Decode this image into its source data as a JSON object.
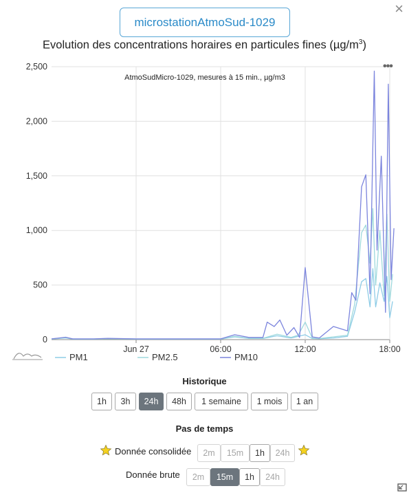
{
  "close_icon": "×",
  "station_button": "microstationAtmoSud-1029",
  "chart": {
    "title_main": "Evolution des concentrations horaires en particules fines (µg/m",
    "title_sup": "3",
    "title_end": ")",
    "subtitle": "AtmoSudMicro-1029, mesures à 15 min.,  µg/m3",
    "menu_icon": "•••"
  },
  "chart_data": {
    "type": "line",
    "title": "Evolution des concentrations horaires en particules fines (µg/m³)",
    "subtitle": "AtmoSudMicro-1029, mesures à 15 min.,  µg/m3",
    "ylim": [
      0,
      2500
    ],
    "y_ticks": [
      "0",
      "500",
      "1,000",
      "1,500",
      "2,000",
      "2,500"
    ],
    "x_ticks": [
      "Jun 27",
      "06:00",
      "12:00",
      "18:00"
    ],
    "x_range_hours": [
      -6,
      18
    ],
    "grid": true,
    "legend_position": "bottom",
    "series": [
      {
        "name": "PM1",
        "color": "#8ecce6",
        "points": [
          [
            -6,
            5
          ],
          [
            -5,
            15
          ],
          [
            -4.5,
            5
          ],
          [
            -3,
            5
          ],
          [
            -2,
            8
          ],
          [
            0,
            5
          ],
          [
            6,
            5
          ],
          [
            7,
            25
          ],
          [
            8,
            10
          ],
          [
            9,
            10
          ],
          [
            10,
            35
          ],
          [
            11,
            15
          ],
          [
            11.5,
            30
          ],
          [
            12,
            45
          ],
          [
            12.5,
            10
          ],
          [
            13,
            8
          ],
          [
            14,
            15
          ],
          [
            15,
            30
          ],
          [
            15.5,
            250
          ],
          [
            16,
            530
          ],
          [
            16.3,
            560
          ],
          [
            16.6,
            300
          ],
          [
            16.8,
            650
          ],
          [
            17,
            300
          ],
          [
            17.3,
            520
          ],
          [
            17.6,
            350
          ],
          [
            17.8,
            580
          ],
          [
            18,
            200
          ],
          [
            18.2,
            350
          ]
        ]
      },
      {
        "name": "PM2.5",
        "color": "#9ed9dd",
        "points": [
          [
            -6,
            6
          ],
          [
            -5,
            18
          ],
          [
            -4.5,
            6
          ],
          [
            -3,
            6
          ],
          [
            -2,
            10
          ],
          [
            0,
            6
          ],
          [
            6,
            6
          ],
          [
            7,
            30
          ],
          [
            8,
            12
          ],
          [
            9,
            12
          ],
          [
            10,
            50
          ],
          [
            11,
            20
          ],
          [
            11.5,
            40
          ],
          [
            12,
            160
          ],
          [
            12.5,
            15
          ],
          [
            13,
            10
          ],
          [
            14,
            25
          ],
          [
            15,
            40
          ],
          [
            15.5,
            320
          ],
          [
            16,
            980
          ],
          [
            16.3,
            1050
          ],
          [
            16.6,
            700
          ],
          [
            16.8,
            1200
          ],
          [
            17,
            500
          ],
          [
            17.3,
            1000
          ],
          [
            17.6,
            400
          ],
          [
            17.8,
            1150
          ],
          [
            18,
            350
          ],
          [
            18.2,
            600
          ]
        ]
      },
      {
        "name": "PM10",
        "color": "#7b84dd",
        "points": [
          [
            -6,
            7
          ],
          [
            -5,
            22
          ],
          [
            -4.5,
            7
          ],
          [
            -3,
            7
          ],
          [
            -2,
            12
          ],
          [
            0,
            7
          ],
          [
            6,
            7
          ],
          [
            7,
            45
          ],
          [
            8,
            20
          ],
          [
            9,
            20
          ],
          [
            9.3,
            160
          ],
          [
            9.8,
            120
          ],
          [
            10.2,
            180
          ],
          [
            10.7,
            40
          ],
          [
            11.2,
            110
          ],
          [
            11.6,
            20
          ],
          [
            12,
            660
          ],
          [
            12.5,
            25
          ],
          [
            13,
            15
          ],
          [
            14,
            120
          ],
          [
            15,
            80
          ],
          [
            15.3,
            430
          ],
          [
            15.6,
            360
          ],
          [
            16,
            1400
          ],
          [
            16.3,
            1510
          ],
          [
            16.6,
            420
          ],
          [
            16.9,
            2460
          ],
          [
            17.1,
            820
          ],
          [
            17.4,
            1680
          ],
          [
            17.7,
            250
          ],
          [
            17.9,
            2340
          ],
          [
            18.1,
            550
          ],
          [
            18.3,
            1020
          ]
        ]
      }
    ]
  },
  "legend": {
    "items": [
      {
        "label": "PM1",
        "color": "#8ecce6"
      },
      {
        "label": "PM2.5",
        "color": "#9ed9dd"
      },
      {
        "label": "PM10",
        "color": "#7b84dd"
      }
    ]
  },
  "historique": {
    "title": "Historique",
    "buttons": [
      "1h",
      "3h",
      "24h",
      "48h",
      "1 semaine",
      "1 mois",
      "1 an"
    ],
    "active": "24h"
  },
  "pas_de_temps": {
    "title": "Pas de temps",
    "consolidee": {
      "label": "Donnée consolidée",
      "buttons": [
        "2m",
        "15m",
        "1h",
        "24h"
      ],
      "enabled": "1h"
    },
    "brute": {
      "label": "Donnée brute",
      "buttons": [
        "2m",
        "15m",
        "1h",
        "24h"
      ],
      "active": "15m",
      "enabled": "1h"
    }
  }
}
